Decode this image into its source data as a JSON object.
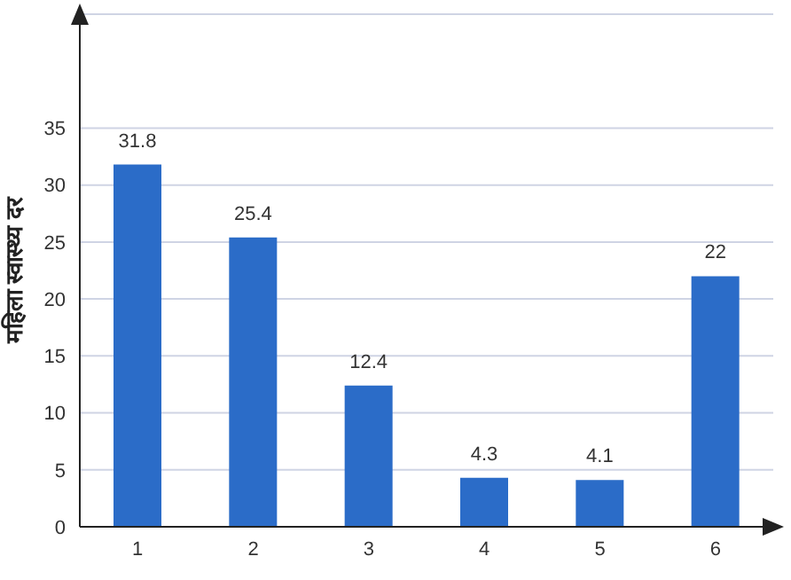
{
  "chart_data": {
    "type": "bar",
    "ylabel": "महिला स्वास्थ्य दर",
    "categories": [
      "1",
      "2",
      "3",
      "4",
      "5",
      "6"
    ],
    "values": [
      31.8,
      25.4,
      12.4,
      4.3,
      4.1,
      22
    ],
    "color": "#2b6cc8",
    "ylim": [
      0,
      45
    ],
    "yticks": [
      0,
      5,
      10,
      15,
      20,
      25,
      30,
      35
    ],
    "grid": "y",
    "data_labels": true
  }
}
